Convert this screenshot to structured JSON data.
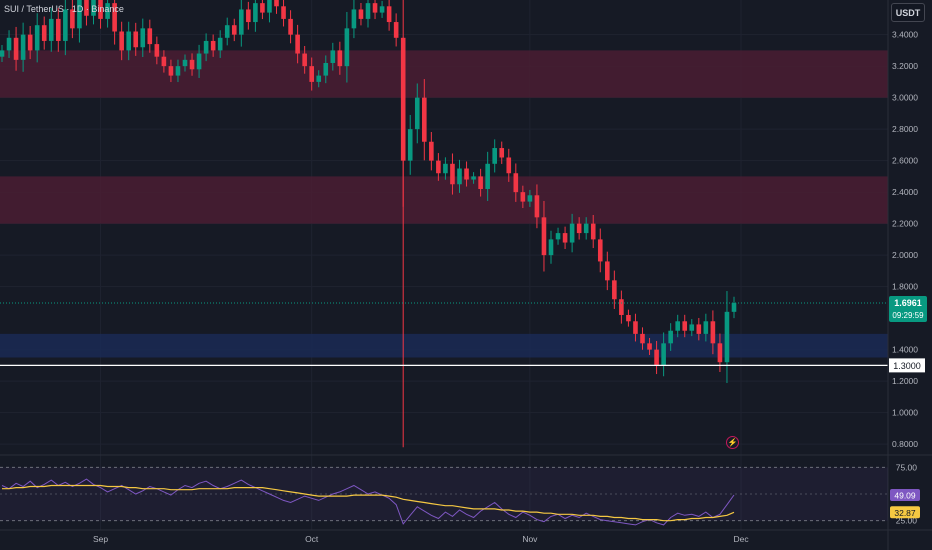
{
  "chart_data": {
    "type": "candlestick",
    "title": "SUI / TetherUS · 1D · Binance",
    "currency": "USDT",
    "price_axis": {
      "ticks": [
        "3.4000",
        "3.2000",
        "3.0000",
        "2.8000",
        "2.6000",
        "2.4000",
        "2.2000",
        "2.0000",
        "1.8000",
        "1.4000",
        "1.2000",
        "1.0000",
        "0.8000"
      ],
      "tick_values": [
        3.4,
        3.2,
        3.0,
        2.8,
        2.6,
        2.4,
        2.2,
        2.0,
        1.8,
        1.4,
        1.2,
        1.0,
        0.8
      ],
      "range": [
        0.75,
        3.62
      ]
    },
    "time_axis": {
      "labels": [
        "Sep",
        "Oct",
        "Nov",
        "Dec"
      ],
      "label_days": [
        14,
        44,
        75,
        105
      ]
    },
    "last_price": {
      "label": "1.6961",
      "value": 1.6961,
      "countdown": "09:29:59",
      "color": "#089981"
    },
    "horizontal_line": {
      "label": "1.3000",
      "value": 1.3
    },
    "zones": [
      {
        "from": 3.0,
        "to": 3.3,
        "color": "#4a1d33"
      },
      {
        "from": 2.2,
        "to": 2.5,
        "color": "#4a1d33"
      },
      {
        "from": 1.35,
        "to": 1.5,
        "color": "#1a2a55"
      }
    ],
    "colors": {
      "up": "#089981",
      "down": "#f23645",
      "background": "#161a25",
      "grid": "#1f2330"
    },
    "candle_closes": [
      3.3,
      3.38,
      3.24,
      3.4,
      3.3,
      3.46,
      3.36,
      3.5,
      3.36,
      3.56,
      3.44,
      3.64,
      3.52,
      3.62,
      3.5,
      3.6,
      3.42,
      3.3,
      3.42,
      3.32,
      3.44,
      3.34,
      3.26,
      3.2,
      3.14,
      3.2,
      3.24,
      3.18,
      3.28,
      3.36,
      3.3,
      3.38,
      3.46,
      3.4,
      3.56,
      3.48,
      3.6,
      3.54,
      3.66,
      3.58,
      3.5,
      3.4,
      3.28,
      3.2,
      3.1,
      3.14,
      3.22,
      3.3,
      3.2,
      3.44,
      3.56,
      3.5,
      3.6,
      3.54,
      3.58,
      3.48,
      3.38,
      2.6,
      2.8,
      3.0,
      2.72,
      2.6,
      2.52,
      2.58,
      2.45,
      2.55,
      2.48,
      2.5,
      2.42,
      2.58,
      2.68,
      2.62,
      2.52,
      2.4,
      2.34,
      2.38,
      2.24,
      2.0,
      2.1,
      2.14,
      2.08,
      2.2,
      2.14,
      2.2,
      2.1,
      1.96,
      1.84,
      1.72,
      1.62,
      1.58,
      1.5,
      1.44,
      1.4,
      1.3,
      1.44,
      1.52,
      1.58,
      1.52,
      1.56,
      1.5,
      1.58,
      1.44,
      1.32,
      1.64,
      1.6961
    ],
    "rsi": {
      "levels": [
        "75.00",
        "25.00"
      ],
      "level_values": [
        75,
        25
      ],
      "range": [
        20,
        80
      ],
      "rsi_label": "49.09",
      "rsi_value": 49.09,
      "ma_label": "32.87",
      "ma_value": 32.87,
      "rsi_color": "#7e57c2",
      "ma_color": "#f5c842",
      "values": [
        58,
        55,
        60,
        57,
        62,
        56,
        59,
        63,
        58,
        61,
        57,
        60,
        64,
        59,
        56,
        52,
        55,
        58,
        54,
        50,
        53,
        57,
        55,
        52,
        49,
        54,
        58,
        56,
        60,
        62,
        58,
        55,
        57,
        60,
        63,
        59,
        56,
        53,
        50,
        47,
        44,
        42,
        45,
        48,
        46,
        44,
        47,
        50,
        52,
        55,
        58,
        54,
        50,
        52,
        49,
        46,
        40,
        22,
        30,
        38,
        34,
        30,
        27,
        33,
        29,
        35,
        31,
        28,
        34,
        38,
        42,
        36,
        31,
        28,
        33,
        30,
        26,
        24,
        29,
        31,
        27,
        30,
        28,
        32,
        29,
        26,
        25,
        24,
        23,
        22,
        21,
        24,
        26,
        23,
        21,
        28,
        32,
        30,
        31,
        29,
        33,
        28,
        31,
        40,
        49.09
      ],
      "ma_values": [
        55,
        55,
        56,
        56,
        57,
        57,
        57,
        58,
        58,
        58,
        58,
        58,
        58,
        58,
        58,
        57,
        57,
        57,
        56,
        56,
        55,
        55,
        55,
        55,
        54,
        54,
        54,
        54,
        55,
        55,
        55,
        55,
        55,
        56,
        56,
        56,
        56,
        56,
        55,
        54,
        53,
        52,
        51,
        50,
        49,
        48,
        48,
        48,
        48,
        48,
        49,
        49,
        49,
        49,
        49,
        48,
        47,
        45,
        44,
        43,
        42,
        41,
        40,
        39,
        39,
        38,
        37,
        36,
        36,
        36,
        36,
        35,
        35,
        34,
        34,
        33,
        33,
        32,
        32,
        31,
        31,
        31,
        30,
        30,
        30,
        29,
        29,
        28,
        28,
        27,
        27,
        26,
        26,
        26,
        25,
        25,
        26,
        26,
        27,
        27,
        28,
        28,
        29,
        30,
        32.87
      ]
    }
  }
}
